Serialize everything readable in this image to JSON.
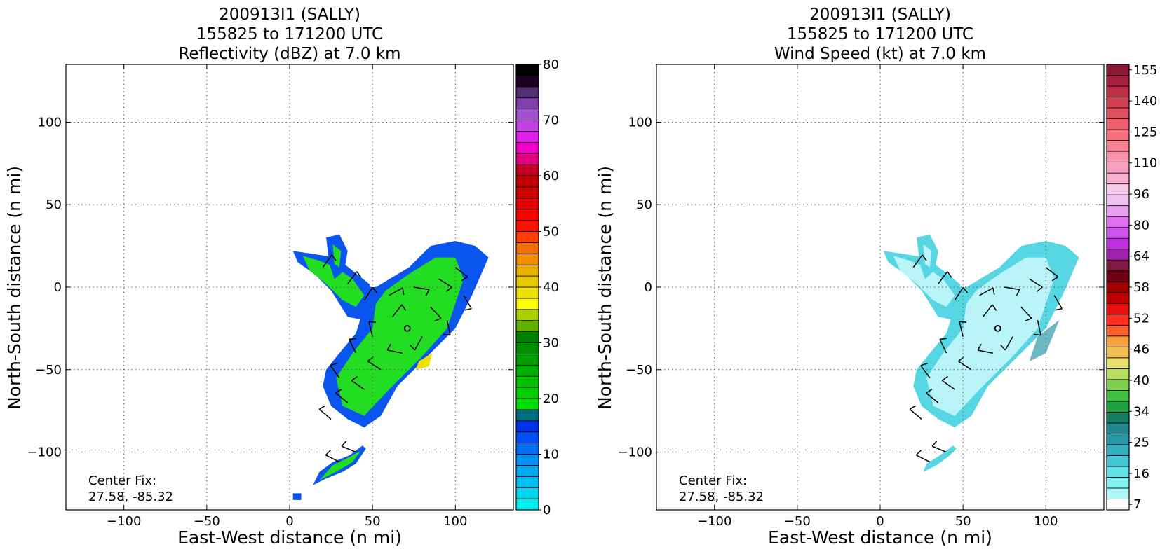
{
  "panels": [
    {
      "title_lines": [
        "200913I1 (SALLY)",
        "155825 to 171200 UTC",
        "Reflectivity (dBZ) at 7.0 km"
      ],
      "center_fix_label": "Center Fix:",
      "center_fix_value": "27.58, -85.32"
    },
    {
      "title_lines": [
        "200913I1 (SALLY)",
        "155825 to 171200 UTC",
        "Wind Speed (kt) at 7.0 km"
      ],
      "center_fix_label": "Center Fix:",
      "center_fix_value": "27.58, -85.32"
    }
  ],
  "chart_data": [
    {
      "type": "heatmap",
      "field": "Reflectivity",
      "title": "200913I1 (SALLY) 155825 to 171200 UTC Reflectivity (dBZ) at 7.0 km",
      "xlabel": "East-West distance (n mi)",
      "ylabel": "North-South distance (n mi)",
      "xlim": [
        -135,
        135
      ],
      "ylim": [
        -135,
        135
      ],
      "x_ticks": [
        -100,
        -50,
        0,
        50,
        100
      ],
      "y_ticks": [
        -100,
        -50,
        0,
        50,
        100
      ],
      "grid": true,
      "center_fix": [
        71,
        -25
      ],
      "colorbar": {
        "min": 0,
        "max": 80,
        "tick_labels": [
          "0",
          "10",
          "20",
          "30",
          "40",
          "50",
          "60",
          "70",
          "80"
        ],
        "colors": [
          "#00eeee",
          "#00d8ee",
          "#00c0f0",
          "#00a8f0",
          "#0090f8",
          "#0070f8",
          "#0050f8",
          "#0030e8",
          "#007080",
          "#00e000",
          "#00d000",
          "#00c000",
          "#00b000",
          "#00a000",
          "#009000",
          "#008000",
          "#60b000",
          "#a8d000",
          "#ffff00",
          "#f0e000",
          "#e8c800",
          "#e8b000",
          "#f09000",
          "#f07000",
          "#ff4000",
          "#ff1000",
          "#ff0000",
          "#e80000",
          "#d00000",
          "#c00000",
          "#c00020",
          "#e00080",
          "#f000c8",
          "#e020e8",
          "#c040e0",
          "#a050d0",
          "#8040b0",
          "#503070",
          "#200020",
          "#000000"
        ]
      },
      "echo_regions": [
        {
          "name": "main-band",
          "outer": [
            [
              52,
              0
            ],
            [
              72,
              12
            ],
            [
              85,
              25
            ],
            [
              100,
              28
            ],
            [
              112,
              25
            ],
            [
              120,
              18
            ],
            [
              110,
              -5
            ],
            [
              100,
              -25
            ],
            [
              85,
              -40
            ],
            [
              65,
              -60
            ],
            [
              55,
              -78
            ],
            [
              45,
              -85
            ],
            [
              35,
              -80
            ],
            [
              25,
              -72
            ],
            [
              20,
              -60
            ],
            [
              22,
              -50
            ],
            [
              30,
              -40
            ],
            [
              40,
              -28
            ],
            [
              44,
              -15
            ],
            [
              40,
              -5
            ],
            [
              45,
              0
            ]
          ],
          "inner": [
            [
              58,
              -2
            ],
            [
              72,
              8
            ],
            [
              88,
              18
            ],
            [
              100,
              18
            ],
            [
              105,
              5
            ],
            [
              95,
              -25
            ],
            [
              80,
              -42
            ],
            [
              60,
              -62
            ],
            [
              45,
              -78
            ],
            [
              32,
              -72
            ],
            [
              28,
              -55
            ],
            [
              38,
              -40
            ],
            [
              50,
              -25
            ],
            [
              52,
              -10
            ]
          ]
        },
        {
          "name": "northwest-arm",
          "outer": [
            [
              2,
              22
            ],
            [
              15,
              20
            ],
            [
              28,
              18
            ],
            [
              38,
              10
            ],
            [
              48,
              2
            ],
            [
              52,
              -8
            ],
            [
              45,
              -20
            ],
            [
              35,
              -18
            ],
            [
              30,
              -10
            ],
            [
              25,
              -2
            ],
            [
              15,
              8
            ],
            [
              5,
              15
            ]
          ],
          "inner": [
            [
              8,
              19
            ],
            [
              18,
              16
            ],
            [
              28,
              12
            ],
            [
              38,
              5
            ],
            [
              45,
              -5
            ],
            [
              40,
              -12
            ],
            [
              32,
              -8
            ],
            [
              22,
              2
            ],
            [
              12,
              10
            ]
          ]
        },
        {
          "name": "north-arm",
          "outer": [
            [
              22,
              30
            ],
            [
              30,
              32
            ],
            [
              35,
              22
            ],
            [
              33,
              10
            ],
            [
              27,
              5
            ],
            [
              24,
              14
            ]
          ],
          "inner": [
            [
              26,
              26
            ],
            [
              31,
              22
            ],
            [
              30,
              12
            ],
            [
              27,
              14
            ]
          ]
        },
        {
          "name": "south-band",
          "outer": [
            [
              14,
              -120
            ],
            [
              22,
              -116
            ],
            [
              32,
              -112
            ],
            [
              40,
              -107
            ],
            [
              46,
              -98
            ],
            [
              44,
              -96
            ],
            [
              36,
              -102
            ],
            [
              26,
              -106
            ],
            [
              18,
              -112
            ]
          ],
          "inner": [
            [
              18,
              -117
            ],
            [
              28,
              -112
            ],
            [
              38,
              -106
            ],
            [
              43,
              -99
            ],
            [
              36,
              -103
            ],
            [
              26,
              -108
            ]
          ]
        },
        {
          "name": "southwest-fragments",
          "outer": [
            [
              2,
              -125
            ],
            [
              7,
              -125
            ],
            [
              7,
              -129
            ],
            [
              2,
              -129
            ]
          ],
          "inner": []
        }
      ]
    },
    {
      "type": "heatmap",
      "field": "Wind Speed",
      "title": "200913I1 (SALLY) 155825 to 171200 UTC Wind Speed (kt) at 7.0 km",
      "xlabel": "East-West distance (n mi)",
      "ylabel": "North-South distance (n mi)",
      "xlim": [
        -135,
        135
      ],
      "ylim": [
        -135,
        135
      ],
      "x_ticks": [
        -100,
        -50,
        0,
        50,
        100
      ],
      "y_ticks": [
        -100,
        -50,
        0,
        50,
        100
      ],
      "grid": true,
      "center_fix": [
        71,
        -25
      ],
      "colorbar": {
        "tick_labels": [
          "7",
          "16",
          "25",
          "34",
          "40",
          "46",
          "52",
          "58",
          "64",
          "80",
          "96",
          "110",
          "125",
          "140",
          "155"
        ],
        "colors": [
          "#ffffff",
          "#b0f8f8",
          "#80f0f0",
          "#60e0e8",
          "#40c8d8",
          "#30b0c0",
          "#2898a8",
          "#208890",
          "#108060",
          "#20a040",
          "#40c040",
          "#80d050",
          "#b8e060",
          "#e8e070",
          "#f0c050",
          "#f8a040",
          "#ff6030",
          "#ff3020",
          "#e81010",
          "#c00000",
          "#a00000",
          "#700010",
          "#801840",
          "#a020b0",
          "#c030e0",
          "#d050f0",
          "#e070f0",
          "#e8a0f0",
          "#f0c0f0",
          "#f8c8e8",
          "#f8b0d0",
          "#f8a0c0",
          "#f890a8",
          "#f88090",
          "#f87080",
          "#f06070",
          "#e05060",
          "#d04050",
          "#c03048",
          "#a82040",
          "#901838"
        ]
      },
      "echo_regions": [
        {
          "name": "main-band",
          "outer": [
            [
              52,
              0
            ],
            [
              72,
              12
            ],
            [
              85,
              25
            ],
            [
              100,
              28
            ],
            [
              112,
              25
            ],
            [
              120,
              18
            ],
            [
              110,
              -5
            ],
            [
              100,
              -25
            ],
            [
              85,
              -40
            ],
            [
              65,
              -60
            ],
            [
              55,
              -78
            ],
            [
              45,
              -85
            ],
            [
              35,
              -80
            ],
            [
              25,
              -72
            ],
            [
              20,
              -60
            ],
            [
              22,
              -50
            ],
            [
              30,
              -40
            ],
            [
              40,
              -28
            ],
            [
              44,
              -15
            ],
            [
              40,
              -5
            ],
            [
              45,
              0
            ]
          ],
          "inner": [
            [
              58,
              -2
            ],
            [
              72,
              8
            ],
            [
              88,
              18
            ],
            [
              100,
              18
            ],
            [
              105,
              5
            ],
            [
              95,
              -25
            ],
            [
              80,
              -42
            ],
            [
              60,
              -62
            ],
            [
              45,
              -78
            ],
            [
              32,
              -72
            ],
            [
              28,
              -55
            ],
            [
              38,
              -40
            ],
            [
              50,
              -25
            ],
            [
              52,
              -10
            ]
          ]
        },
        {
          "name": "northwest-arm",
          "outer": [
            [
              2,
              22
            ],
            [
              15,
              20
            ],
            [
              28,
              18
            ],
            [
              38,
              10
            ],
            [
              48,
              2
            ],
            [
              52,
              -8
            ],
            [
              45,
              -20
            ],
            [
              35,
              -18
            ],
            [
              30,
              -10
            ],
            [
              25,
              -2
            ],
            [
              15,
              8
            ],
            [
              5,
              15
            ]
          ],
          "inner": [
            [
              8,
              19
            ],
            [
              18,
              16
            ],
            [
              28,
              12
            ],
            [
              38,
              5
            ],
            [
              45,
              -5
            ],
            [
              40,
              -12
            ],
            [
              32,
              -8
            ],
            [
              22,
              2
            ],
            [
              12,
              10
            ]
          ]
        },
        {
          "name": "north-arm",
          "outer": [
            [
              22,
              30
            ],
            [
              30,
              32
            ],
            [
              35,
              22
            ],
            [
              33,
              10
            ],
            [
              27,
              5
            ],
            [
              24,
              14
            ]
          ],
          "inner": [
            [
              26,
              26
            ],
            [
              31,
              22
            ],
            [
              30,
              12
            ],
            [
              27,
              14
            ]
          ]
        },
        {
          "name": "south-band",
          "outer": [
            [
              26,
              -112
            ],
            [
              34,
              -108
            ],
            [
              42,
              -102
            ],
            [
              46,
              -98
            ],
            [
              44,
              -96
            ],
            [
              36,
              -102
            ],
            [
              28,
              -107
            ]
          ],
          "inner": []
        }
      ]
    }
  ],
  "palette": {
    "refl_outer": "#0a55f0",
    "refl_inner": "#22dd22",
    "refl_accent": "#f0e000",
    "wind_outer": "#55d6e2",
    "wind_inner": "#b8f4f8",
    "wind_dark": "#2c9aa8"
  }
}
